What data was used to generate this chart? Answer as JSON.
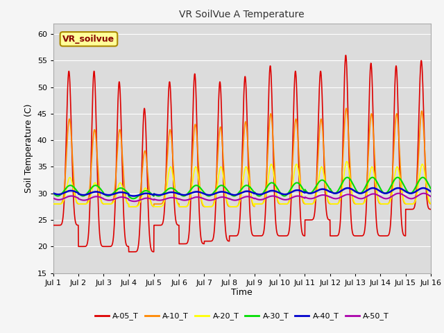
{
  "title": "VR SoilVue A Temperature",
  "xlabel": "Time",
  "ylabel": "Soil Temperature (C)",
  "ylim": [
    15,
    62
  ],
  "xlim": [
    0,
    15
  ],
  "xtick_labels": [
    "Jul 1",
    "Jul 2",
    "Jul 3",
    "Jul 4",
    "Jul 5",
    "Jul 6",
    "Jul 7",
    "Jul 8",
    "Jul 9",
    "Jul 10",
    "Jul 11",
    "Jul 12",
    "Jul 13",
    "Jul 14",
    "Jul 15",
    "Jul 16"
  ],
  "series_colors": {
    "A-05_T": "#dd0000",
    "A-10_T": "#ff8800",
    "A-20_T": "#ffff00",
    "A-30_T": "#00dd00",
    "A-40_T": "#0000cc",
    "A-50_T": "#aa00aa"
  },
  "series_names": [
    "A-05_T",
    "A-10_T",
    "A-20_T",
    "A-30_T",
    "A-40_T",
    "A-50_T"
  ],
  "legend_box_color": "#ffff99",
  "legend_box_edge": "#aa8800",
  "legend_box_label": "VR_soilvue",
  "plot_bg_color": "#dcdcdc",
  "fig_bg_color": "#f5f5f5",
  "grid_color": "#ffffff",
  "n_days": 15,
  "pts_per_day": 144,
  "A05_day_peaks": [
    53,
    53,
    51,
    46,
    51,
    52.5,
    51,
    52,
    54,
    53,
    53,
    56,
    54.5,
    54,
    55
  ],
  "A05_day_mins": [
    24,
    20,
    20,
    19,
    24,
    20.5,
    21,
    22,
    22,
    22,
    25,
    22,
    22,
    22,
    27
  ],
  "A10_day_peaks": [
    44,
    42,
    42,
    38,
    42,
    43,
    42.5,
    43.5,
    45,
    44,
    44,
    46,
    45,
    45,
    45.5
  ],
  "A10_day_mins": [
    28,
    28,
    28,
    27.5,
    28,
    27.5,
    27.5,
    27.5,
    28,
    28,
    28,
    28,
    28,
    28,
    28
  ],
  "A20_day_peaks": [
    33,
    32,
    32,
    31,
    35,
    35,
    35,
    35,
    35.5,
    35.5,
    35,
    36,
    35,
    35,
    35.5
  ],
  "A20_day_mins": [
    28,
    28,
    28,
    27.5,
    27.5,
    27.5,
    27.5,
    27.5,
    28,
    28,
    28,
    28,
    28,
    28,
    28
  ],
  "A30_peaks": [
    31.5,
    31.5,
    31.0,
    30.5,
    31.0,
    31.5,
    31.5,
    31.5,
    32.0,
    32.0,
    32.5,
    33.0,
    33.0,
    33.0,
    33.0
  ],
  "A30_mins": [
    29.5,
    29.5,
    29.5,
    29.0,
    29.5,
    29.5,
    29.5,
    29.5,
    29.5,
    29.5,
    30.0,
    30.0,
    30.0,
    30.0,
    30.0
  ],
  "A40_peaks": [
    30.5,
    30.3,
    30.2,
    30.0,
    30.2,
    30.3,
    30.3,
    30.4,
    30.5,
    30.6,
    30.8,
    31.0,
    31.0,
    31.0,
    31.0
  ],
  "A40_mins": [
    29.8,
    29.7,
    29.7,
    29.5,
    29.7,
    29.7,
    29.7,
    29.7,
    29.8,
    29.8,
    30.0,
    30.0,
    30.0,
    30.0,
    30.0
  ],
  "A50_peaks": [
    29.5,
    29.4,
    29.3,
    29.1,
    29.2,
    29.3,
    29.3,
    29.4,
    29.5,
    29.5,
    29.7,
    29.8,
    29.9,
    30.0,
    30.0
  ],
  "A50_mins": [
    28.8,
    28.7,
    28.7,
    28.5,
    28.7,
    28.7,
    28.7,
    28.7,
    28.8,
    28.8,
    29.0,
    29.0,
    29.0,
    29.0,
    29.0
  ]
}
